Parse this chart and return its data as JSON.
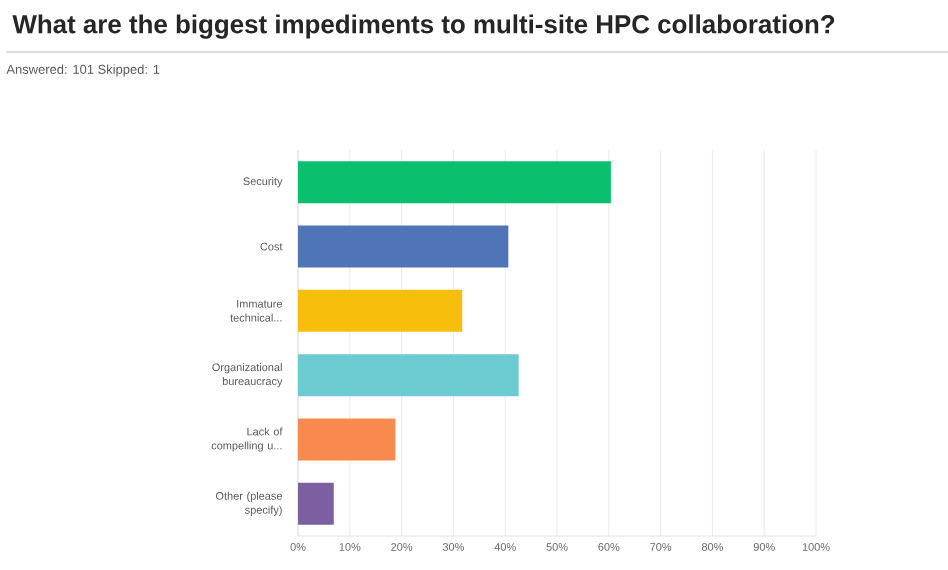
{
  "chart_data": {
    "type": "bar",
    "orientation": "horizontal",
    "title": "What are the biggest impediments to multi-site HPC collaboration?",
    "subtitle": "Answered: 101    Skipped: 1",
    "categories": [
      "Security",
      "Cost",
      "Immature technical...",
      "Organizational bureaucracy",
      "Lack of compelling u...",
      "Other (please specify)"
    ],
    "values": [
      60.4,
      40.6,
      31.7,
      42.6,
      18.8,
      6.9
    ],
    "colors": [
      "#0abf6d",
      "#4f74b8",
      "#f7be0c",
      "#6ccbd0",
      "#f88a4f",
      "#7b5fa0"
    ],
    "xlim": [
      0,
      100
    ],
    "xticks": [
      {
        "value": 0,
        "label": "0%"
      },
      {
        "value": 10,
        "label": "10%"
      },
      {
        "value": 20,
        "label": "20%"
      },
      {
        "value": 30,
        "label": "30%"
      },
      {
        "value": 40,
        "label": "40%"
      },
      {
        "value": 50,
        "label": "50%"
      },
      {
        "value": 60,
        "label": "60%"
      },
      {
        "value": 70,
        "label": "70%"
      },
      {
        "value": 80,
        "label": "80%"
      },
      {
        "value": 90,
        "label": "90%"
      },
      {
        "value": 100,
        "label": "100%"
      }
    ],
    "grid": "x"
  }
}
